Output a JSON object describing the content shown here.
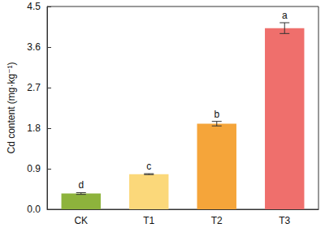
{
  "chart_data": {
    "type": "bar",
    "categories": [
      "CK",
      "T1",
      "T2",
      "T3"
    ],
    "values": [
      0.35,
      0.78,
      1.9,
      4.02
    ],
    "errors": [
      0.02,
      0.01,
      0.05,
      0.12
    ],
    "letters": [
      "d",
      "c",
      "b",
      "a"
    ],
    "colors": [
      "#8db33c",
      "#fbd87a",
      "#f5a53a",
      "#ef6f6c"
    ],
    "ylabel": "Cd content (mg·kg⁻¹)",
    "ylim": [
      0,
      4.5
    ],
    "yticks": [
      {
        "value": 0,
        "label": "0.0"
      },
      0.9,
      1.8,
      2.7,
      3.6,
      4.5
    ],
    "grid": false
  }
}
